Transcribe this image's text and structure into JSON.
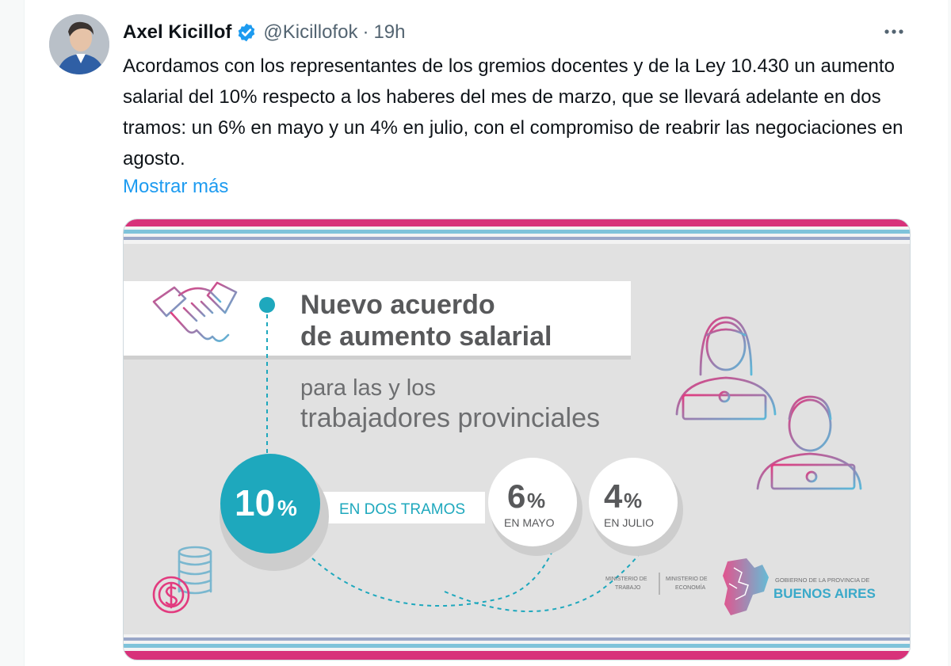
{
  "tweet": {
    "author_name": "Axel Kicillof",
    "handle": "@Kicillofok",
    "separator": "·",
    "timestamp": "19h",
    "verified_icon": "verified-badge-icon",
    "more_icon": "more-options-icon",
    "text": "Acordamos con los representantes de los gremios docentes y de la Ley 10.430 un aumento salarial del 10% respecto a los haberes del mes de marzo, que se llevará adelante en dos tramos: un 6% en mayo y un 4% en julio, con el compromiso de reabrir las negociaciones en agosto.",
    "show_more": "Mostrar más",
    "link_color": "#1d9bf0"
  },
  "infographic": {
    "title_line1": "Nuevo acuerdo",
    "title_line2": "de aumento salarial",
    "subtitle_line1": "para las y los",
    "subtitle_line2": "trabajadores provinciales",
    "total_value": "10",
    "total_unit": "%",
    "tramos_label": "EN DOS TRAMOS",
    "tramo1_value": "6",
    "tramo1_unit": "%",
    "tramo1_label": "EN MAYO",
    "tramo2_value": "4",
    "tramo2_unit": "%",
    "tramo2_label": "EN JULIO",
    "ministry1_line1": "MINISTERIO DE",
    "ministry1_line2": "TRABAJO",
    "ministry2_line1": "MINISTERIO DE",
    "ministry2_line2": "ECONOMÍA",
    "gov_line1": "GOBIERNO DE LA PROVINCIA DE",
    "gov_line2": "BUENOS AIRES",
    "icons": [
      "handshake-icon",
      "coins-dollar-icon",
      "woman-laptop-icon",
      "man-laptop-icon",
      "province-map-logo"
    ],
    "colors": {
      "teal": "#1ea8bd",
      "pink": "#e23b7f",
      "blue": "#5bb9d9",
      "gray": "#e1e1e1",
      "text_gray": "#58595b"
    }
  }
}
